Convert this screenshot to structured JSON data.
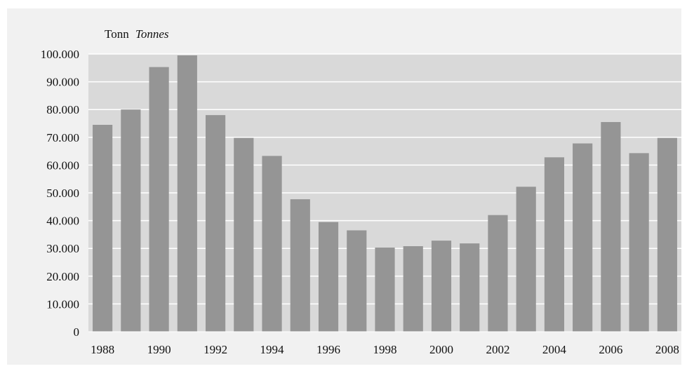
{
  "chart_data": {
    "type": "bar",
    "unit_label": "Tonn",
    "unit_label_en": "Tonnes",
    "categories": [
      "1988",
      "1989",
      "1990",
      "1991",
      "1992",
      "1993",
      "1994",
      "1995",
      "1996",
      "1997",
      "1998",
      "1999",
      "2000",
      "2001",
      "2002",
      "2003",
      "2004",
      "2005",
      "2006",
      "2007",
      "2008"
    ],
    "values": [
      74500,
      80000,
      95300,
      99500,
      78000,
      69800,
      63300,
      47700,
      39500,
      36500,
      30300,
      30800,
      32800,
      31800,
      42000,
      52200,
      62800,
      67800,
      75500,
      64300,
      69800
    ],
    "x_tick_labels": [
      "1988",
      "1990",
      "1992",
      "1994",
      "1996",
      "1998",
      "2000",
      "2002",
      "2004",
      "2006",
      "2008"
    ],
    "y_tick_labels": [
      "0",
      "10.000",
      "20.000",
      "30.000",
      "40.000",
      "50.000",
      "60.000",
      "70.000",
      "80.000",
      "90.000",
      "100.000"
    ],
    "ylim": [
      0,
      100000
    ],
    "y_ticks": [
      0,
      10000,
      20000,
      30000,
      40000,
      50000,
      60000,
      70000,
      80000,
      90000,
      100000
    ],
    "grid": true,
    "legend": "none",
    "colors": {
      "bar": "#959595",
      "plot_background": "#d9d9d9",
      "outer_background": "#f1f1f1",
      "gridline": "#ffffff"
    }
  }
}
